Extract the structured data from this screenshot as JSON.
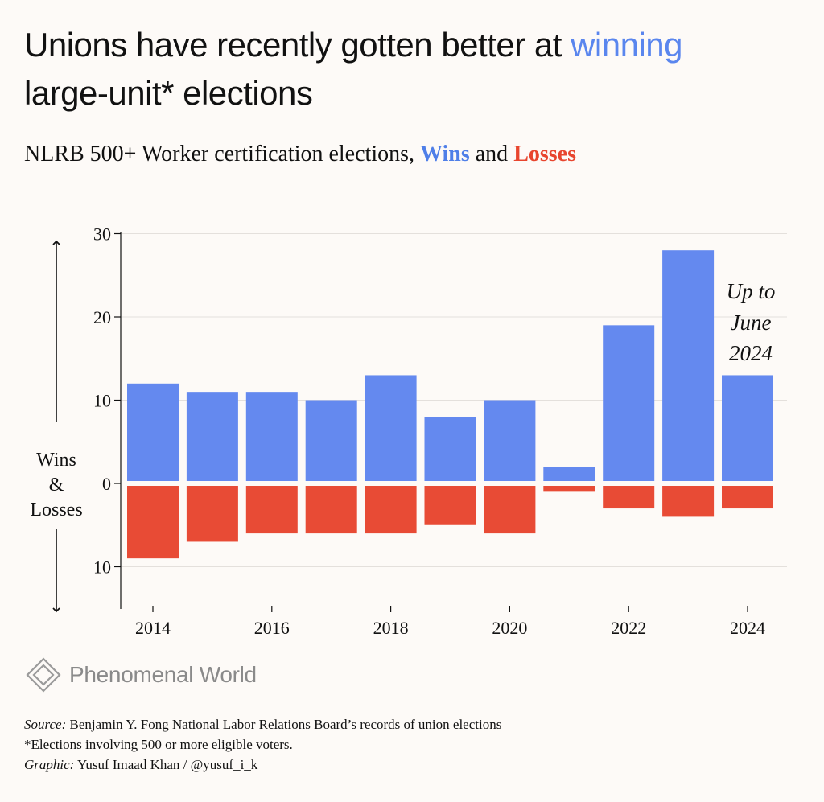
{
  "title": {
    "part1": "Unions have recently gotten better at ",
    "highlight": "winning",
    "part2": "large-unit* elections"
  },
  "subtitle": {
    "part1": "NLRB 500+ Worker certification elections, ",
    "wins": "Wins",
    "and": " and ",
    "losses": "Losses"
  },
  "chart_data": {
    "type": "bar",
    "categories": [
      2014,
      2015,
      2016,
      2017,
      2018,
      2019,
      2020,
      2021,
      2022,
      2023,
      2024
    ],
    "series": [
      {
        "name": "Wins",
        "values": [
          12,
          11,
          11,
          10,
          13,
          8,
          10,
          2,
          19,
          28,
          13
        ],
        "color": "#6489ef"
      },
      {
        "name": "Losses",
        "values": [
          9,
          7,
          6,
          6,
          6,
          5,
          6,
          1,
          3,
          4,
          3
        ],
        "color": "#e84b35"
      }
    ],
    "ylabel_lines": [
      "Wins",
      "&",
      "Losses"
    ],
    "y_ticks": [
      {
        "value": 30,
        "label": "30"
      },
      {
        "value": 20,
        "label": "20"
      },
      {
        "value": 10,
        "label": "10"
      },
      {
        "value": 0,
        "label": "0"
      },
      {
        "value": -10,
        "label": "10"
      }
    ],
    "x_ticks": [
      2014,
      2016,
      2018,
      2020,
      2022,
      2024
    ],
    "ylim": [
      -15,
      30
    ],
    "grid": true,
    "annotation": {
      "category": 2024,
      "lines": [
        "Up to",
        "June",
        "2024"
      ]
    }
  },
  "logo": {
    "text": "Phenomenal World",
    "icon": "diamond-logo-icon"
  },
  "footer": {
    "source_label": "Source:",
    "source_text": " Benjamin Y. Fong National Labor Relations Board’s records of union elections",
    "note": "*Elections involving 500 or more eligible voters.",
    "graphic_label": "Graphic:",
    "graphic_text": " Yusuf Imaad Khan / @yusuf_i_k"
  }
}
